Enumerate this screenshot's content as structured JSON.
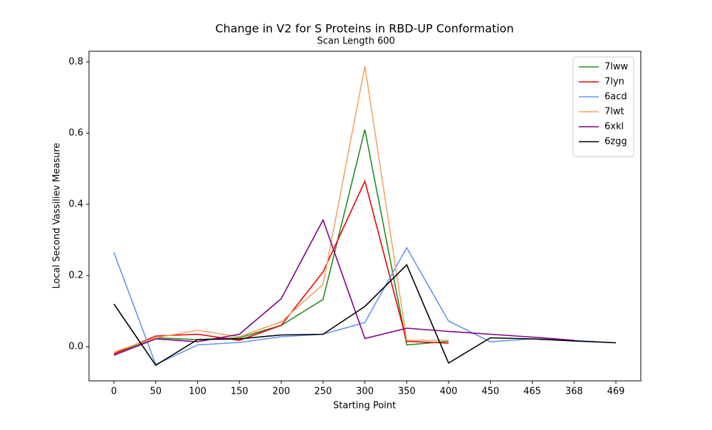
{
  "chart_data": {
    "type": "line",
    "title": "Change in V2 for S Proteins in RBD-UP Conformation",
    "subtitle": "Scan Length 600",
    "x_label": "Starting Point",
    "y_label": "Local Second Vassiliev Measure",
    "categories": [
      "0",
      "50",
      "100",
      "150",
      "200",
      "250",
      "300",
      "350",
      "400",
      "450",
      "465",
      "368",
      "469"
    ],
    "ylim": [
      -0.096,
      0.83
    ],
    "yticks": [
      {
        "value": 0,
        "label": "0.0"
      },
      0.2,
      0.4,
      0.6,
      0.8
    ],
    "legend": "upper right",
    "series": [
      {
        "name": "7lww",
        "color": "#228b22",
        "values": [
          -0.02,
          0.025,
          0.02,
          0.025,
          0.06,
          0.133,
          0.61,
          0.005,
          0.015,
          null,
          null,
          null,
          null
        ]
      },
      {
        "name": "7lyn",
        "color": "#ee0000",
        "values": [
          -0.02,
          0.03,
          0.035,
          0.018,
          0.06,
          0.21,
          0.465,
          0.015,
          0.01,
          null,
          null,
          null,
          null
        ]
      },
      {
        "name": "6acd",
        "color": "#6495ed",
        "values": [
          0.265,
          -0.05,
          0.005,
          0.012,
          0.028,
          0.035,
          0.068,
          0.278,
          0.072,
          0.014,
          0.022,
          0.018,
          0.011
        ]
      },
      {
        "name": "7lwt",
        "color": "#f4a460",
        "values": [
          -0.015,
          0.025,
          0.046,
          0.028,
          0.07,
          0.175,
          0.788,
          0.018,
          0.018,
          null,
          null,
          null,
          null
        ]
      },
      {
        "name": "6xkl",
        "color": "#800080",
        "values": [
          -0.024,
          0.022,
          0.014,
          0.035,
          0.135,
          0.356,
          0.023,
          0.052,
          0.043,
          0.035,
          0.027,
          0.018,
          null
        ]
      },
      {
        "name": "6zgg",
        "color": "#000000",
        "values": [
          0.12,
          -0.052,
          0.02,
          0.022,
          0.033,
          0.035,
          0.113,
          0.23,
          -0.046,
          0.025,
          0.022,
          0.016,
          0.011
        ]
      }
    ]
  }
}
